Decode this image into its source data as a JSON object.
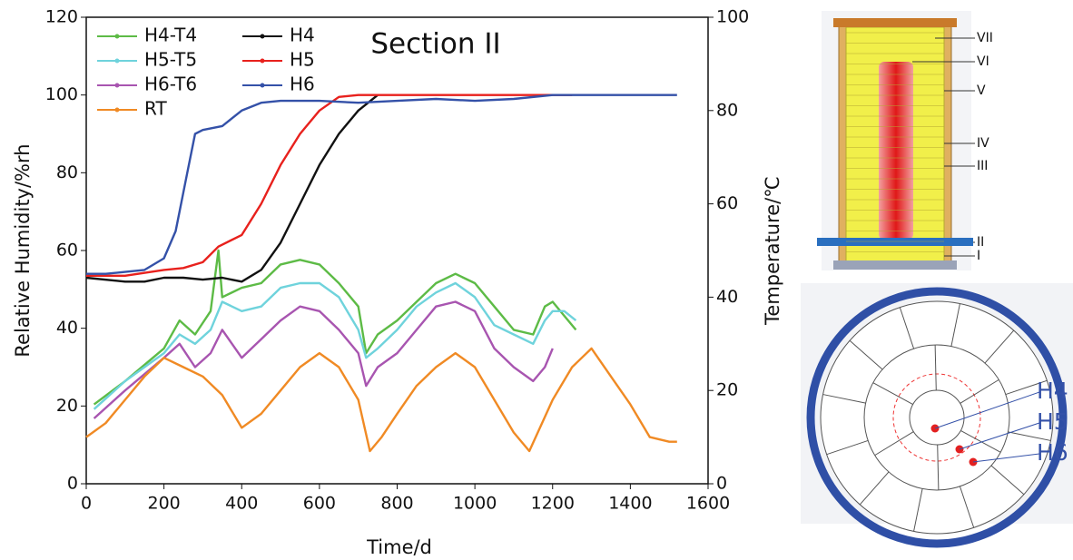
{
  "chart_data": {
    "type": "line",
    "title": "Section II",
    "x_label": "Time/d",
    "y_label": "Relative Humidity/%rh",
    "y2_label": "Temperature/℃",
    "xlim": [
      0,
      1600
    ],
    "xticks": [
      0,
      200,
      400,
      600,
      800,
      1000,
      1200,
      1400,
      1600
    ],
    "ylim": [
      0,
      120
    ],
    "yticks": [
      0,
      20,
      40,
      60,
      80,
      100,
      120
    ],
    "y2lim": [
      0,
      100
    ],
    "y2ticks": [
      0,
      20,
      40,
      60,
      80,
      100
    ],
    "legend": "upper-left",
    "series": [
      {
        "name": "H4-T4",
        "color": "#5dbb46",
        "axis": "y2",
        "x": [
          20,
          100,
          200,
          240,
          280,
          320,
          340,
          350,
          400,
          450,
          500,
          550,
          600,
          650,
          700,
          720,
          750,
          800,
          850,
          900,
          950,
          1000,
          1050,
          1100,
          1150,
          1180,
          1200,
          1230,
          1260
        ],
        "values": [
          17,
          22,
          29,
          35,
          32,
          37,
          50,
          40,
          42,
          43,
          47,
          48,
          47,
          43,
          38,
          28,
          32,
          35,
          39,
          43,
          45,
          43,
          38,
          33,
          32,
          38,
          39,
          36,
          33
        ]
      },
      {
        "name": "H5-T5",
        "color": "#6fd3dc",
        "axis": "y2",
        "x": [
          20,
          100,
          200,
          240,
          280,
          320,
          350,
          400,
          450,
          500,
          550,
          600,
          650,
          700,
          720,
          750,
          800,
          850,
          900,
          950,
          1000,
          1050,
          1100,
          1150,
          1180,
          1200,
          1230,
          1260
        ],
        "values": [
          16,
          22,
          28,
          32,
          30,
          33,
          39,
          37,
          38,
          42,
          43,
          43,
          40,
          33,
          27,
          29,
          33,
          38,
          41,
          43,
          40,
          34,
          32,
          30,
          35,
          37,
          37,
          35
        ]
      },
      {
        "name": "H6-T6",
        "color": "#a855b0",
        "axis": "y2",
        "x": [
          20,
          100,
          200,
          240,
          280,
          320,
          350,
          400,
          450,
          500,
          550,
          600,
          650,
          700,
          720,
          750,
          800,
          850,
          900,
          950,
          1000,
          1050,
          1100,
          1150,
          1180,
          1200
        ],
        "values": [
          14,
          20,
          27,
          30,
          25,
          28,
          33,
          27,
          31,
          35,
          38,
          37,
          33,
          28,
          21,
          25,
          28,
          33,
          38,
          39,
          37,
          29,
          25,
          22,
          25,
          29
        ]
      },
      {
        "name": "RT",
        "color": "#f08a24",
        "axis": "y2",
        "x": [
          0,
          50,
          100,
          150,
          200,
          250,
          300,
          350,
          400,
          450,
          500,
          550,
          600,
          650,
          700,
          730,
          760,
          800,
          850,
          900,
          950,
          1000,
          1050,
          1100,
          1140,
          1200,
          1250,
          1300,
          1350,
          1400,
          1450,
          1500,
          1520
        ],
        "values": [
          10,
          13,
          18,
          23,
          27,
          25,
          23,
          19,
          12,
          15,
          20,
          25,
          28,
          25,
          18,
          7,
          10,
          15,
          21,
          25,
          28,
          25,
          18,
          11,
          7,
          18,
          25,
          29,
          23,
          17,
          10,
          9,
          9
        ]
      },
      {
        "name": "H4",
        "color": "#111111",
        "axis": "y",
        "x": [
          0,
          100,
          150,
          200,
          250,
          300,
          350,
          400,
          450,
          500,
          550,
          600,
          650,
          700,
          750
        ],
        "values": [
          53,
          52,
          52,
          53,
          53,
          52.5,
          53,
          52,
          55,
          62,
          72,
          82,
          90,
          96,
          100
        ]
      },
      {
        "name": "H5",
        "color": "#e8211d",
        "axis": "y",
        "x": [
          0,
          100,
          200,
          250,
          300,
          340,
          400,
          450,
          500,
          550,
          600,
          650,
          700,
          800,
          900,
          1000,
          1100,
          1200,
          1250
        ],
        "values": [
          53.5,
          53.5,
          55,
          55.5,
          57,
          61,
          64,
          72,
          82,
          90,
          96,
          99.5,
          100,
          100,
          100,
          100,
          100,
          100,
          100
        ]
      },
      {
        "name": "H6",
        "color": "#3451a8",
        "axis": "y",
        "x": [
          0,
          50,
          100,
          150,
          200,
          230,
          260,
          280,
          300,
          350,
          400,
          450,
          500,
          600,
          700,
          800,
          900,
          1000,
          1100,
          1200,
          1300,
          1400,
          1520
        ],
        "values": [
          54,
          54,
          54.5,
          55,
          58,
          65,
          80,
          90,
          91,
          92,
          96,
          98,
          98.5,
          98.5,
          98,
          98.5,
          99,
          98.5,
          99,
          100,
          100,
          100,
          100
        ]
      }
    ]
  },
  "diagram": {
    "column_labels": [
      "VII",
      "VI",
      "V",
      "IV",
      "III",
      "II",
      "I"
    ],
    "sensor_labels": [
      "H4",
      "H5",
      "H6"
    ]
  }
}
